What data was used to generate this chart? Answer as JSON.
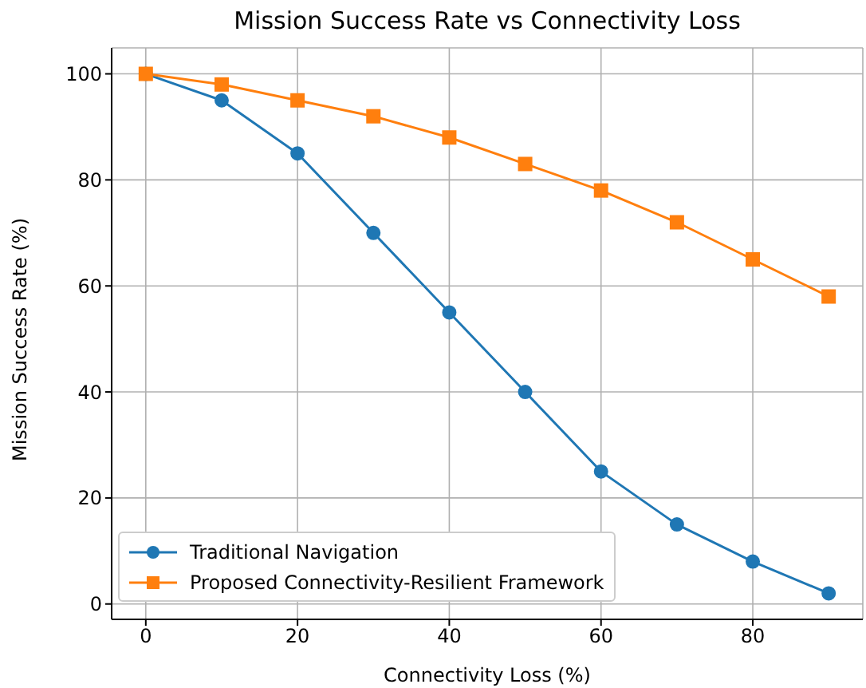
{
  "chart_data": {
    "type": "line",
    "title": "Mission Success Rate vs Connectivity Loss",
    "xlabel": "Connectivity Loss (%)",
    "ylabel": "Mission Success Rate (%)",
    "x": [
      0,
      10,
      20,
      30,
      40,
      50,
      60,
      70,
      80,
      90
    ],
    "series": [
      {
        "name": "Traditional Navigation",
        "color": "#1f77b4",
        "marker": "circle",
        "values": [
          100,
          95,
          85,
          70,
          55,
          40,
          25,
          15,
          8,
          2
        ]
      },
      {
        "name": "Proposed Connectivity-Resilient Framework",
        "color": "#ff7f0e",
        "marker": "square",
        "values": [
          100,
          98,
          95,
          92,
          88,
          83,
          78,
          72,
          65,
          58
        ]
      }
    ],
    "xlim": [
      -4.5,
      94.5
    ],
    "xticks": [
      0,
      20,
      40,
      60,
      80
    ],
    "ylim": [
      -2.9,
      104.9
    ],
    "yticks": [
      0,
      20,
      40,
      60,
      80,
      100
    ],
    "grid": true,
    "legend": "bottom left",
    "line_style": "solid"
  }
}
